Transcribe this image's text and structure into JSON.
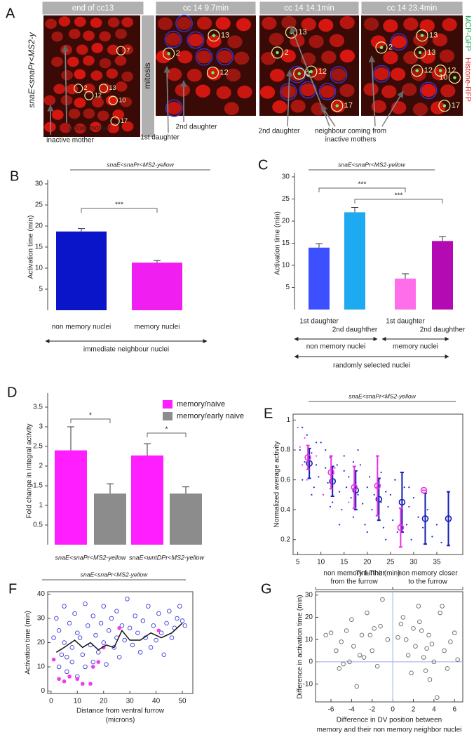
{
  "panel_a": {
    "label": "A",
    "genotype": "snaE<snaPr<MS2-y",
    "mitosis": "mitosis",
    "channels": [
      "MCP-GFP",
      "Histone-RFP"
    ],
    "images": [
      {
        "title": "end of cc13",
        "nuclei": [
          "7",
          "2",
          "12",
          "13",
          "10",
          "17"
        ]
      },
      {
        "title": "cc 14  9.7min",
        "nuclei": [
          "2",
          "13",
          "12"
        ]
      },
      {
        "title": "cc 14  14.1min",
        "nuclei": [
          "13",
          "2",
          "2",
          "12",
          "17"
        ]
      },
      {
        "title": "cc 14  23.4min",
        "nuclei": [
          "2",
          "13",
          "13",
          "12",
          "12",
          "10",
          "17"
        ]
      }
    ],
    "annotations": [
      "active mother",
      "inactive mother",
      "1st daughter",
      "2nd daughter",
      "2nd daughter",
      "neighbour coming from",
      "inactive mothers"
    ]
  },
  "chart_data": [
    {
      "type": "bar",
      "panel": "B",
      "title": "snaE<snaPr<MS2-yellow",
      "ylabel": "Activation time (min)",
      "categories": [
        "non memory nuclei",
        "memory nuclei"
      ],
      "values": [
        18.7,
        11.3
      ],
      "errors": [
        0.7,
        0.5
      ],
      "colors": [
        "#0a14c8",
        "#f01ef0"
      ],
      "ylim": [
        0,
        30
      ],
      "yticks": [
        5,
        10,
        15,
        20,
        25,
        30
      ],
      "significance": [
        {
          "label": "***",
          "pair": [
            0,
            1
          ]
        }
      ],
      "caption": "immediate neighbour nuclei"
    },
    {
      "type": "bar",
      "panel": "C",
      "title": "snaE<snaPr<MS2-yellow",
      "ylabel": "Activation time (min)",
      "categories": [
        "1st daughter",
        "2nd daughther",
        "1st daughter",
        "2nd daughther"
      ],
      "values": [
        14,
        22,
        7,
        15.5
      ],
      "errors": [
        0.9,
        1.1,
        1.1,
        1
      ],
      "colors": [
        "#3c50ff",
        "#1eaaf0",
        "#ff6eea",
        "#b40ab4"
      ],
      "ylim": [
        0,
        30
      ],
      "yticks": [
        5,
        10,
        15,
        20,
        25,
        30
      ],
      "significance": [
        {
          "label": "***",
          "pair": [
            0,
            2
          ]
        },
        {
          "label": "***",
          "pair": [
            1,
            3
          ]
        }
      ],
      "groups": [
        "non memory nuclei",
        "memory nuclei"
      ],
      "caption": "randomly selected nuclei"
    },
    {
      "type": "bar",
      "panel": "D",
      "ylabel": "Fold change in Integral activity",
      "categories": [
        "snaE<snaPr<MS2-yellow",
        "snaE<wntDPr<MS2-yellow"
      ],
      "series": [
        {
          "name": "memory/naive",
          "color": "#ff1eff",
          "values": [
            2.4,
            2.27
          ],
          "errors": [
            0.6,
            0.3
          ]
        },
        {
          "name": "memory/early naive",
          "color": "#8c8c8c",
          "values": [
            1.3,
            1.3
          ],
          "errors": [
            0.25,
            0.17
          ]
        }
      ],
      "ylim": [
        0,
        3.75
      ],
      "yticks": [
        0.5,
        1,
        1.5,
        2,
        2.5,
        3,
        3.5
      ],
      "significance": [
        {
          "label": "*",
          "pair": [
            0,
            1
          ]
        },
        {
          "label": "*",
          "pair": [
            2,
            3
          ]
        }
      ],
      "legend": "upper right"
    },
    {
      "type": "scatter",
      "panel": "E",
      "title": "snaE<snaPr<MS2-yellow",
      "xlabel": "Tini-Tinit (min)",
      "ylabel": "Normalized average activity",
      "xlim": [
        4,
        40.6
      ],
      "ylim": [
        0.1,
        1.04
      ],
      "xticks": [
        5,
        10,
        15,
        20,
        25,
        30,
        35
      ],
      "yticks": [
        0.2,
        0.4,
        0.6,
        0.8,
        1
      ],
      "series": [
        {
          "marker": "dot",
          "color": "#2828d2",
          "x": [
            5.5,
            6,
            6.5,
            7,
            7.5,
            8,
            8.5,
            9,
            9.5,
            10,
            10.5,
            11,
            11.5,
            12,
            12.5,
            13,
            13.5,
            14,
            14.5,
            15,
            15.5,
            16,
            16.5,
            17,
            17.5,
            18,
            18.5,
            19,
            19.5,
            20,
            20.5,
            21,
            21.5,
            22,
            22.5,
            23,
            23.5,
            24,
            24.5,
            25,
            25.5,
            26,
            26.5,
            27,
            27.5,
            28,
            28.5,
            29,
            29.5,
            30,
            31,
            32,
            33,
            34,
            35,
            36,
            8,
            11,
            14,
            17,
            20,
            23,
            26,
            29,
            12,
            18,
            24,
            6,
            9,
            15
          ],
          "y": [
            0.8,
            0.6,
            0.72,
            0.9,
            0.65,
            0.78,
            0.55,
            0.7,
            0.62,
            0.85,
            0.5,
            0.68,
            0.58,
            0.75,
            0.45,
            0.6,
            0.7,
            0.52,
            0.4,
            0.66,
            0.55,
            0.62,
            0.48,
            0.35,
            0.58,
            0.5,
            0.7,
            0.44,
            0.3,
            0.55,
            0.62,
            0.4,
            0.5,
            0.36,
            0.6,
            0.45,
            0.28,
            0.52,
            0.42,
            0.5,
            0.33,
            0.6,
            0.25,
            0.46,
            0.38,
            0.55,
            0.3,
            0.42,
            0.2,
            0.48,
            0.35,
            0.28,
            0.4,
            0.22,
            0.3,
            0.18,
            0.5,
            0.8,
            0.3,
            0.72,
            0.25,
            0.65,
            0.6,
            0.55,
            0.42,
            0.8,
            0.2,
            0.95,
            0.85,
            0.76
          ]
        },
        {
          "marker": "dot",
          "color": "#f03cf0",
          "x": [
            5,
            5.5,
            6,
            6.5,
            7,
            9,
            10.5,
            13,
            16,
            22,
            27
          ],
          "y": [
            0.95,
            0.82,
            0.7,
            0.88,
            0.6,
            0.76,
            0.5,
            0.68,
            0.45,
            0.55,
            0.3
          ]
        },
        {
          "marker": "errorbar",
          "color": "#141eb4",
          "x": [
            7.5,
            12.5,
            17.5,
            22.5,
            27.5,
            32.5,
            37.5
          ],
          "y": [
            0.71,
            0.59,
            0.53,
            0.47,
            0.45,
            0.34,
            0.34
          ],
          "errors": [
            0.1,
            0.1,
            0.13,
            0.14,
            0.2,
            0.17,
            0.18
          ]
        },
        {
          "marker": "errorbar",
          "color": "#e632e6",
          "x": [
            7.2,
            12.2,
            17.2,
            22.2,
            27.2,
            32.2
          ],
          "y": [
            0.75,
            0.65,
            0.55,
            0.56,
            0.28,
            0.53
          ],
          "errors": [
            0.08,
            0.11,
            0.14,
            0.2,
            0.13,
            0
          ]
        }
      ]
    },
    {
      "type": "scatter",
      "panel": "F",
      "title": "snaE<snaPr<MS2-yellow",
      "xlabel": [
        "Distance from ventral furrow",
        "(microns)"
      ],
      "ylabel": "Activation time (min)",
      "xlim": [
        -1.3,
        54
      ],
      "ylim": [
        -1,
        41
      ],
      "xticks": [
        0,
        10,
        20,
        30,
        40,
        50
      ],
      "yticks": [
        0,
        10,
        20,
        30,
        40
      ],
      "series": [
        {
          "marker": "open",
          "color": "#3c3cdc",
          "x": [
            1,
            2,
            3,
            3,
            4,
            5,
            5,
            6,
            7,
            8,
            8,
            9,
            10,
            10,
            11,
            12,
            13,
            13,
            14,
            15,
            16,
            16,
            17,
            18,
            19,
            20,
            20,
            21,
            22,
            23,
            24,
            25,
            25,
            26,
            27,
            28,
            29,
            30,
            31,
            32,
            33,
            34,
            35,
            36,
            37,
            38,
            39,
            40,
            41,
            42,
            43,
            44,
            45,
            46,
            47,
            48,
            49,
            50,
            51,
            6
          ],
          "y": [
            22,
            30,
            10,
            25,
            15,
            35,
            20,
            8,
            28,
            18,
            12,
            32,
            24,
            6,
            22,
            15,
            36,
            10,
            27,
            19,
            31,
            12,
            23,
            16,
            28,
            20,
            35,
            11,
            25,
            30,
            18,
            33,
            22,
            14,
            27,
            21,
            38,
            26,
            19,
            31,
            24,
            16,
            29,
            22,
            35,
            18,
            27,
            21,
            32,
            24,
            15,
            28,
            33,
            22,
            26,
            30,
            35,
            29,
            27,
            14
          ]
        },
        {
          "marker": "filled",
          "color": "#f03cf0",
          "x": [
            1,
            3,
            5,
            7,
            10,
            12,
            15,
            16,
            18,
            20,
            26,
            41
          ],
          "y": [
            13,
            5,
            4,
            6,
            5,
            3,
            3,
            10,
            12,
            18,
            26,
            25
          ]
        },
        {
          "marker": "line",
          "color": "#111111",
          "x": [
            2,
            5,
            9,
            12,
            15,
            18,
            21,
            24,
            27,
            30,
            34,
            38,
            42,
            46,
            50
          ],
          "y": [
            16,
            18,
            21,
            18,
            20,
            17,
            19,
            18,
            25,
            21,
            21,
            24,
            22,
            24,
            28
          ]
        }
      ]
    },
    {
      "type": "scatter",
      "panel": "G",
      "header_left": [
        "non memory further",
        "from the furrow"
      ],
      "header_right": [
        "non memory closer",
        "to the furrow"
      ],
      "xlabel": [
        "Difference in DV position between",
        "memory and their non memory neighbor nuclei"
      ],
      "ylabel": "Difference in activation time (min)",
      "xlim": [
        -7.5,
        6.8
      ],
      "ylim": [
        -18,
        31.5
      ],
      "xticks": [
        -6,
        -4,
        -2,
        0,
        2,
        4,
        6
      ],
      "yticks": [
        -10,
        0,
        10,
        20,
        30
      ],
      "zero_lines": true,
      "series": [
        {
          "marker": "open",
          "color": "#666666",
          "x": [
            -6.5,
            -6,
            -5.5,
            -5,
            -4.8,
            -4.5,
            -4,
            -3.8,
            -3.5,
            -3,
            -2.8,
            -2.5,
            -2,
            -1.8,
            -1.5,
            -1,
            -0.5,
            -4.2,
            -3.2,
            -2.2,
            -5.2,
            -1.2,
            0.5,
            1,
            1.3,
            1.8,
            2,
            2.2,
            2.5,
            2.8,
            3,
            3.2,
            3.5,
            3.8,
            4,
            4.3,
            4.6,
            5,
            5.3,
            5.6,
            6,
            6.3,
            1.5,
            2.6,
            3.6,
            4.8,
            0.8,
            3.3
          ],
          "y": [
            12,
            13,
            5,
            9,
            -1,
            14,
            19,
            7,
            -11,
            12,
            2,
            22,
            5,
            15,
            -2,
            28,
            10,
            0,
            3,
            12,
            -3,
            16,
            11,
            20,
            10,
            -5,
            15,
            7,
            25,
            14,
            2,
            -4,
            12,
            8,
            0,
            -16,
            22,
            5,
            -3,
            9,
            13,
            1,
            3,
            18,
            -8,
            25,
            17,
            6
          ]
        }
      ]
    }
  ]
}
